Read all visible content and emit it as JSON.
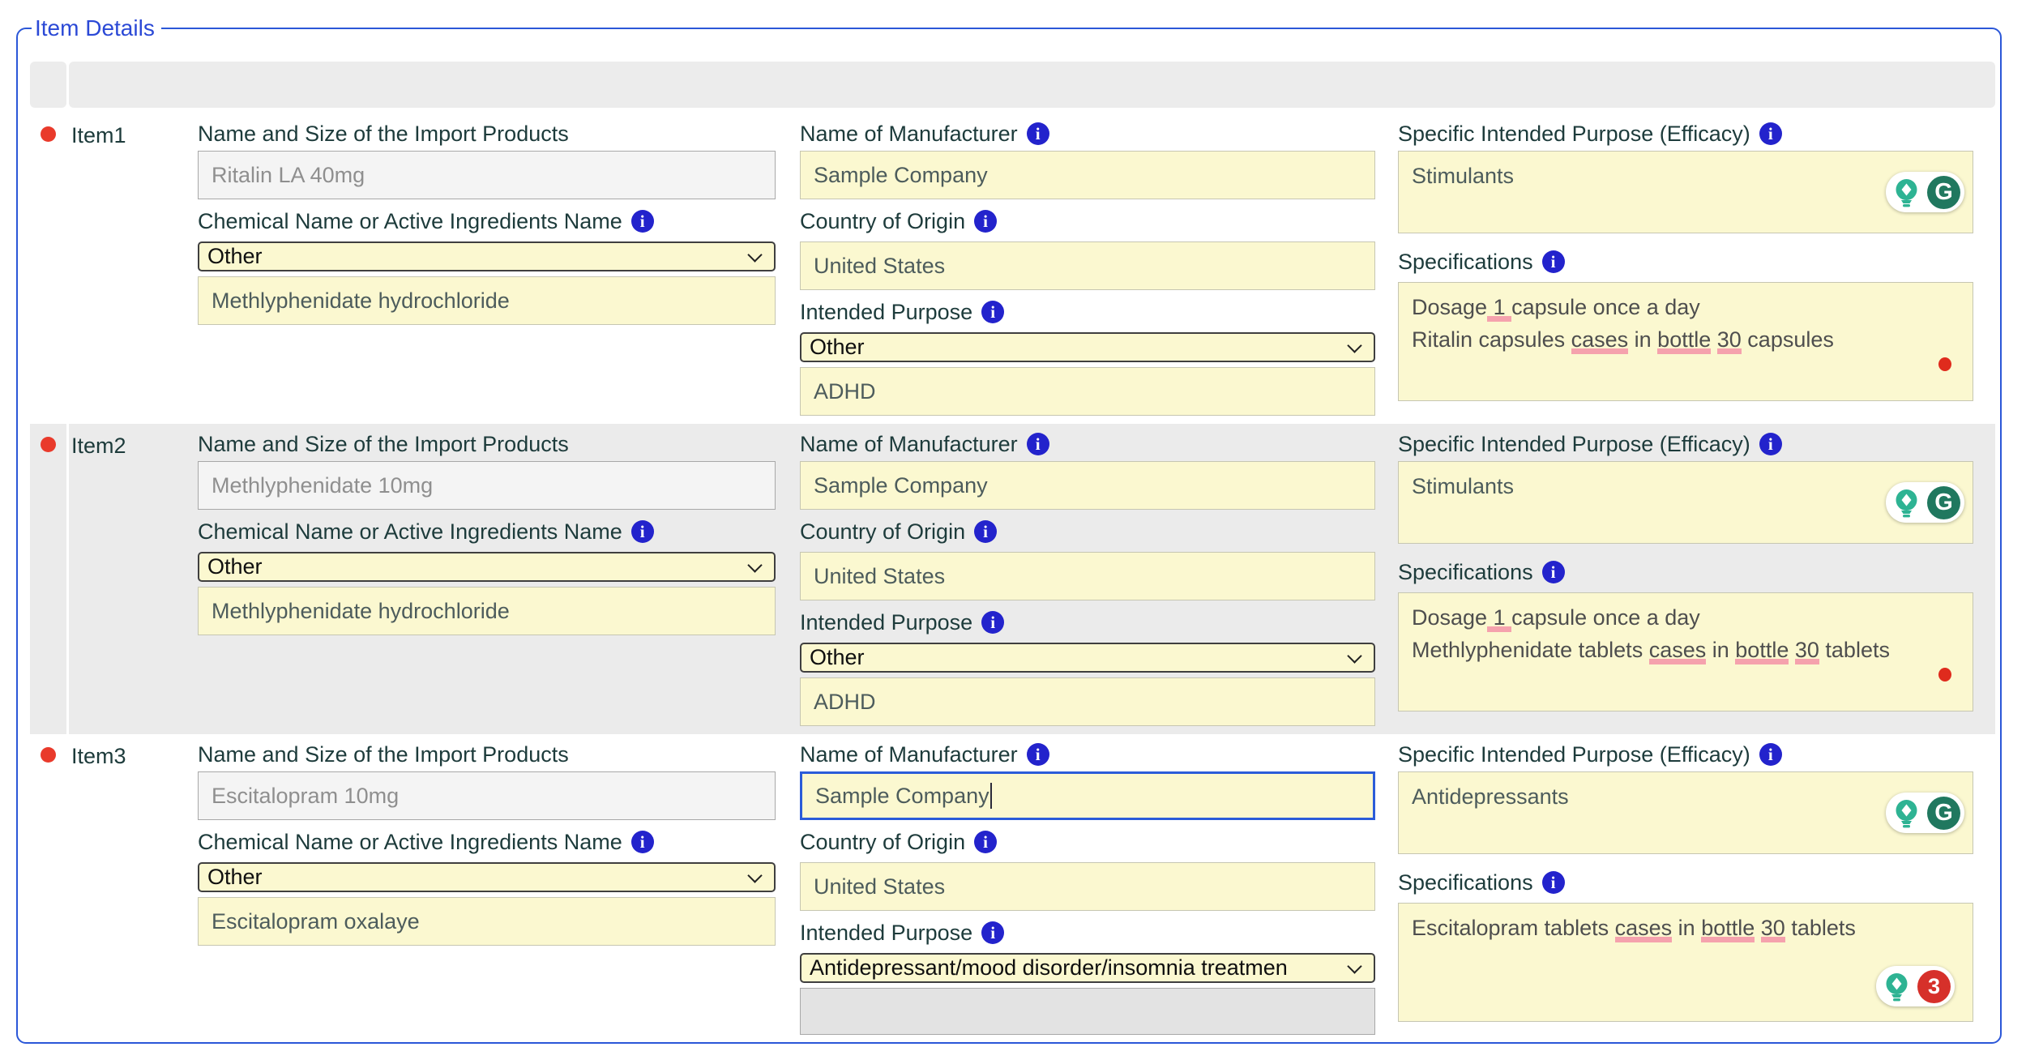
{
  "legend": "Item Details",
  "labels": {
    "product": "Name and Size of the Import Products",
    "chemical": "Chemical Name or Active Ingredients Name",
    "manufacturer": "Name of Manufacturer",
    "country": "Country of Origin",
    "purpose": "Intended Purpose",
    "efficacy": "Specific Intended Purpose (Efficacy)",
    "specifications": "Specifications"
  },
  "icons": {
    "info_glyph": "i",
    "grammarly_glyph": "G",
    "error_count": "3"
  },
  "colors": {
    "panel_border": "#2b57d8",
    "row_alt": "#ebebeb",
    "field_yellow": "#fbf8d0",
    "info_blue": "#2323cc",
    "status_red": "#e93a2b",
    "underline_pink": "#f5a2ad",
    "grammarly_green": "#20785f",
    "error_red": "#d6302a"
  },
  "items": [
    {
      "name": "Item1",
      "product_name": "Ritalin LA 40mg",
      "chemical_select": "Other",
      "chemical_name": "Methlyphenidate hydrochloride",
      "manufacturer": "Sample Company",
      "country": "United States",
      "purpose_select": "Other",
      "purpose_text": "ADHD",
      "efficacy": "Stimulants",
      "spec_lines": [
        [
          {
            "t": "Dosage"
          },
          {
            "t": " 1 ",
            "u": 1
          },
          {
            "t": "capsule once a day"
          }
        ],
        [
          {
            "t": "Ritalin capsules "
          },
          {
            "t": "cases",
            "u": 1
          },
          {
            "t": " in "
          },
          {
            "t": "bottle",
            "u": 1
          },
          {
            "t": " "
          },
          {
            "t": "30",
            "u": 1
          },
          {
            "t": " capsules"
          }
        ]
      ]
    },
    {
      "name": "Item2",
      "product_name": "Methlyphenidate 10mg",
      "chemical_select": "Other",
      "chemical_name": "Methlyphenidate hydrochloride",
      "manufacturer": "Sample Company",
      "country": "United States",
      "purpose_select": "Other",
      "purpose_text": "ADHD",
      "efficacy": "Stimulants",
      "spec_lines": [
        [
          {
            "t": "Dosage"
          },
          {
            "t": " 1 ",
            "u": 1
          },
          {
            "t": "capsule once a day"
          }
        ],
        [
          {
            "t": "Methlyphenidate tablets "
          },
          {
            "t": "cases",
            "u": 1
          },
          {
            "t": " in "
          },
          {
            "t": "bottle",
            "u": 1
          },
          {
            "t": " "
          },
          {
            "t": "30",
            "u": 1
          },
          {
            "t": " tablets"
          }
        ]
      ]
    },
    {
      "name": "Item3",
      "product_name": "Escitalopram 10mg",
      "chemical_select": "Other",
      "chemical_name": "Escitalopram oxalaye",
      "manufacturer": "Sample Company",
      "country": "United States",
      "purpose_select": "Antidepressant/mood disorder/insomnia treatmen",
      "purpose_text": "",
      "efficacy": "Antidepressants",
      "spec_lines": [
        [
          {
            "t": "Escitalopram tablets "
          },
          {
            "t": "cases",
            "u": 1
          },
          {
            "t": " in "
          },
          {
            "t": "bottle",
            "u": 1
          },
          {
            "t": " "
          },
          {
            "t": "30",
            "u": 1
          },
          {
            "t": " tablets"
          }
        ]
      ]
    }
  ]
}
